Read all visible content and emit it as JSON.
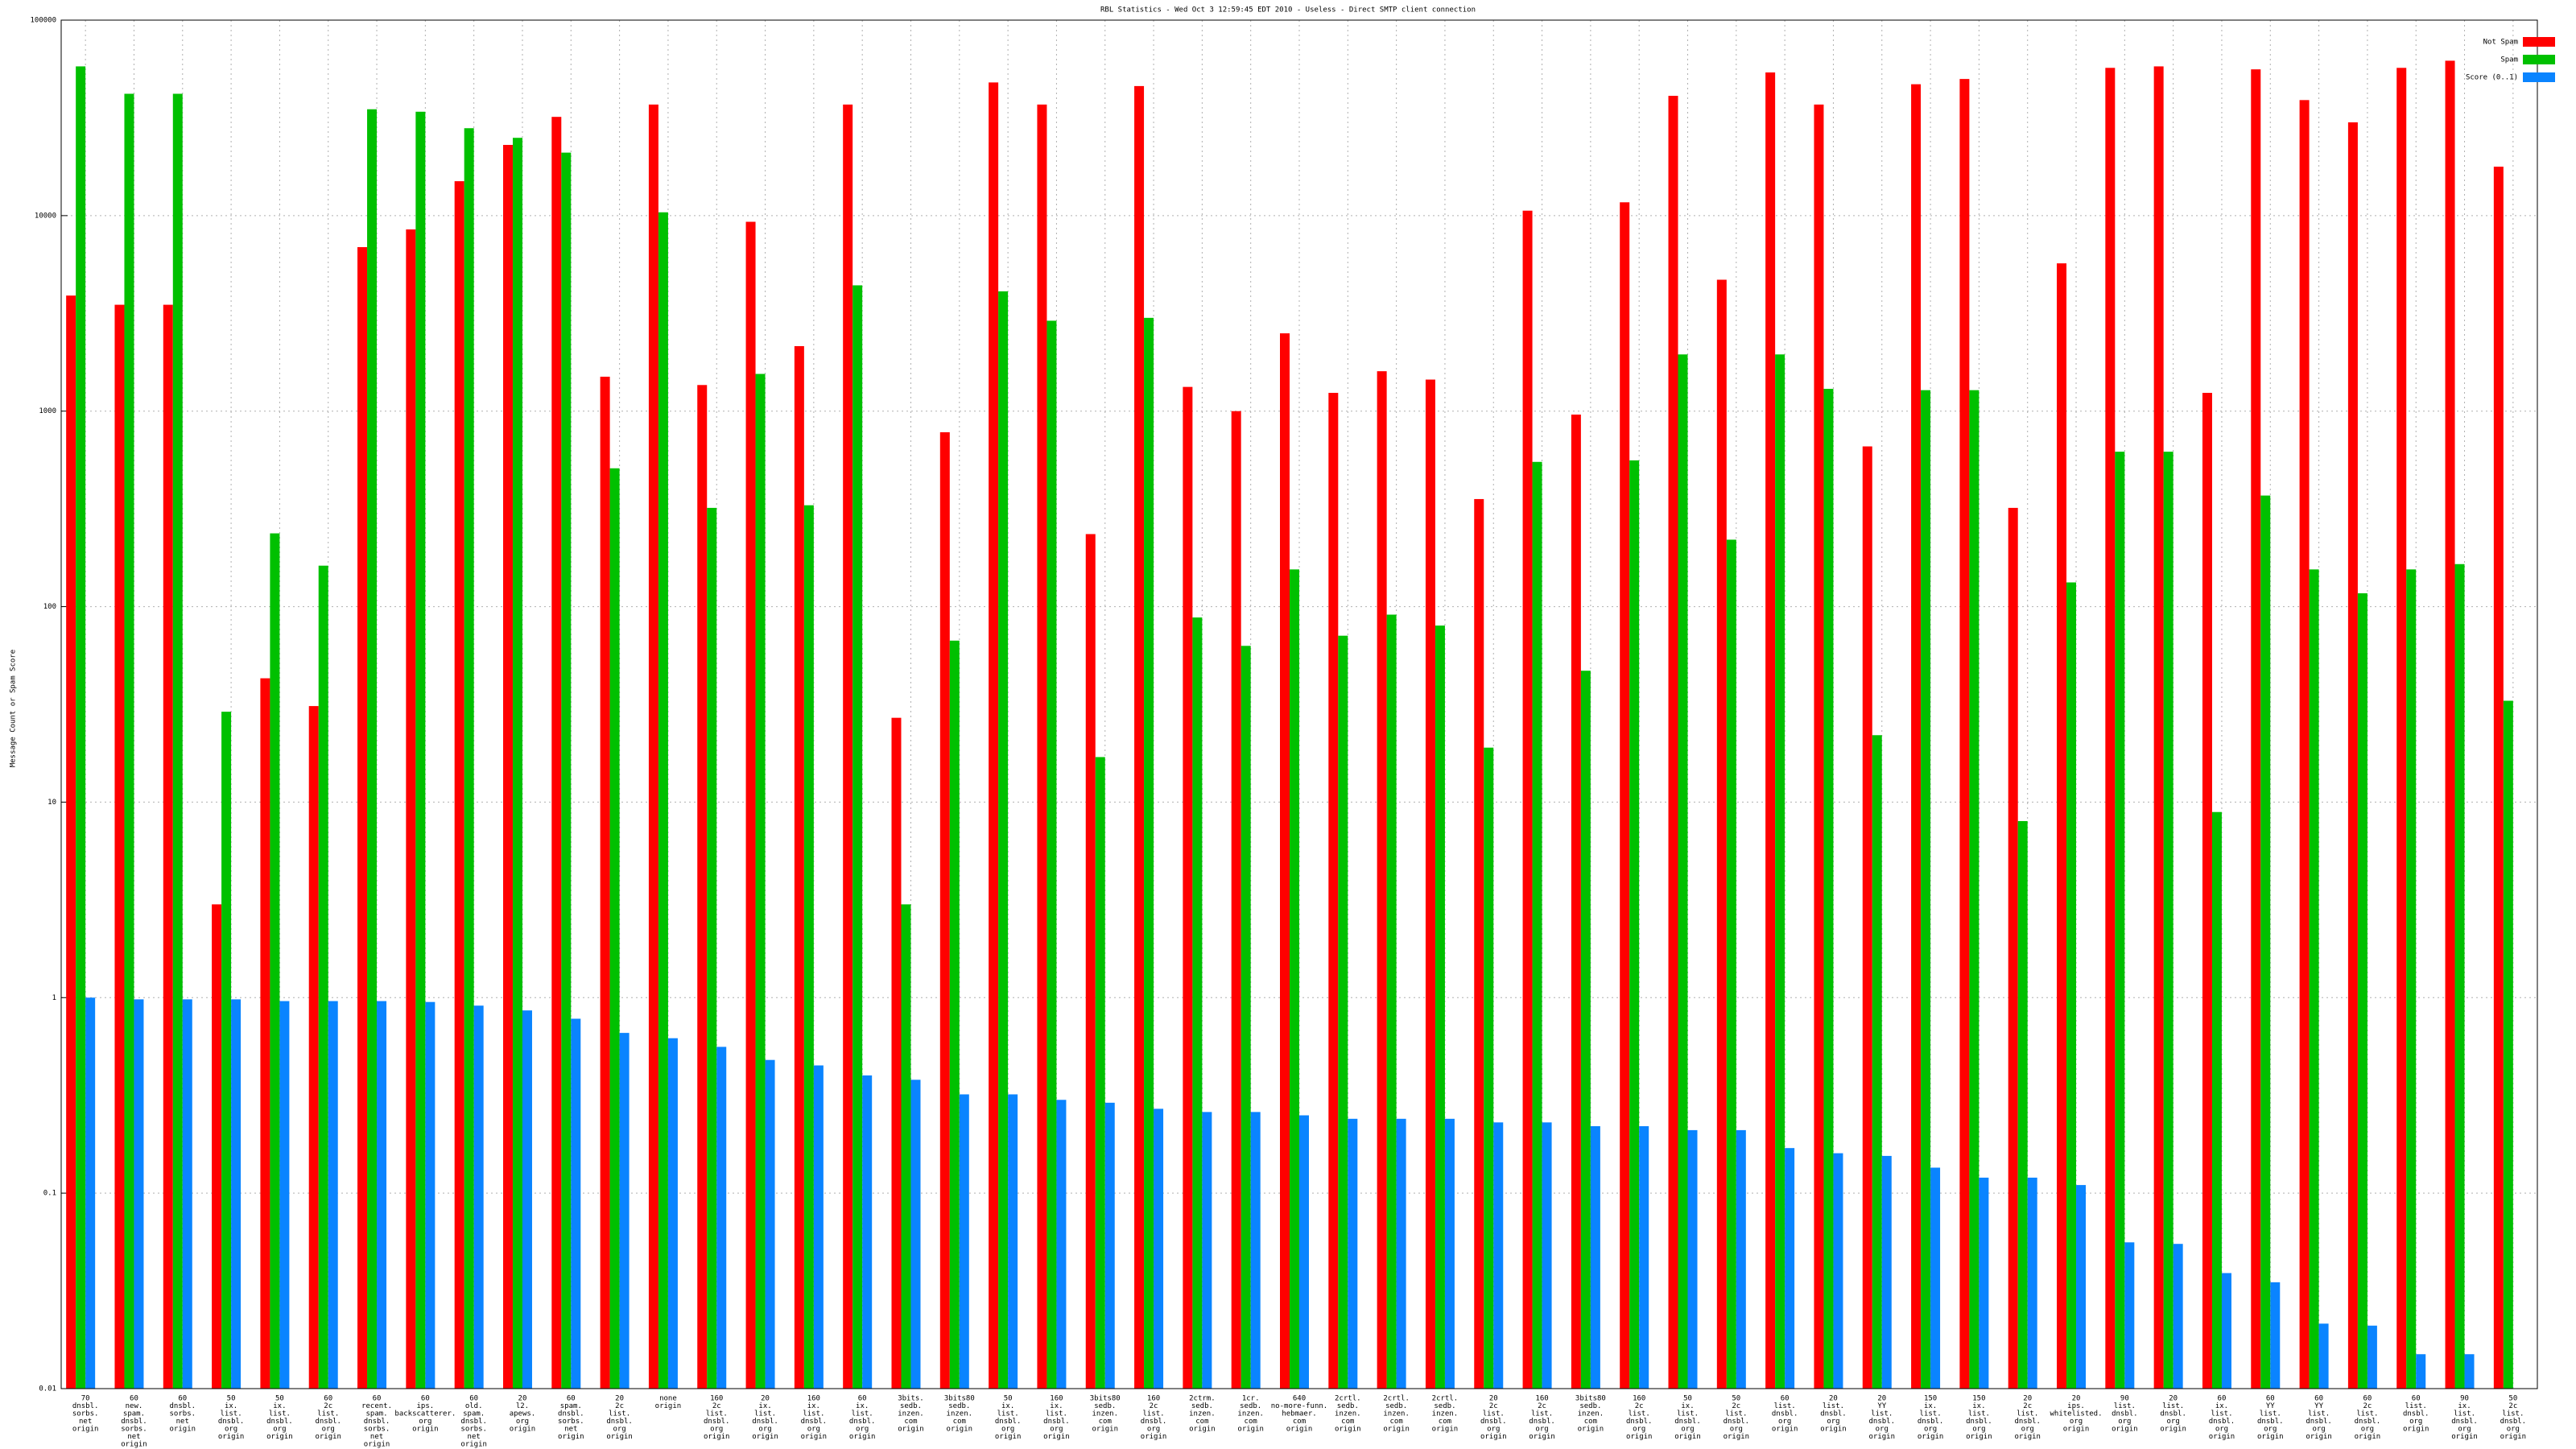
{
  "chart_data": {
    "type": "bar",
    "log_scale": true,
    "grid": true,
    "legend": "top-right",
    "title": "RBL Statistics - Wed Oct  3 12:59:45 EDT 2010 - Useless - Direct SMTP client connection",
    "y_label": "Message Count or Spam Score",
    "ylim": [
      0.01,
      100000
    ],
    "yticks": [
      0.01,
      0.1,
      1,
      10,
      100,
      1000,
      10000,
      100000
    ],
    "categories": [
      [
        "70",
        "dnsbl.",
        "sorbs.",
        "net",
        "origin"
      ],
      [
        "60",
        "new.",
        "spam.",
        "dnsbl.",
        "sorbs.",
        "net",
        "origin"
      ],
      [
        "60",
        "dnsbl.",
        "sorbs.",
        "net",
        "origin"
      ],
      [
        "50",
        "ix.",
        "list.",
        "dnsbl.",
        "org",
        "origin"
      ],
      [
        "50",
        "ix.",
        "list.",
        "dnsbl.",
        "org",
        "origin"
      ],
      [
        "60",
        "2c",
        "list.",
        "dnsbl.",
        "org",
        "origin"
      ],
      [
        "60",
        "recent.",
        "spam.",
        "dnsbl.",
        "sorbs.",
        "net",
        "origin"
      ],
      [
        "60",
        "ips.",
        "backscatterer.",
        "org",
        "origin"
      ],
      [
        "60",
        "old.",
        "spam.",
        "dnsbl.",
        "sorbs.",
        "net",
        "origin"
      ],
      [
        "20",
        "l2.",
        "apews.",
        "org",
        "origin"
      ],
      [
        "60",
        "spam.",
        "dnsbl.",
        "sorbs.",
        "net",
        "origin"
      ],
      [
        "20",
        "2c",
        "list.",
        "dnsbl.",
        "org",
        "origin"
      ],
      [
        "none",
        "origin"
      ],
      [
        "160",
        "2c",
        "list.",
        "dnsbl.",
        "org",
        "origin"
      ],
      [
        "20",
        "ix.",
        "list.",
        "dnsbl.",
        "org",
        "origin"
      ],
      [
        "160",
        "ix.",
        "list.",
        "dnsbl.",
        "org",
        "origin"
      ],
      [
        "60",
        "ix.",
        "list.",
        "dnsbl.",
        "org",
        "origin"
      ],
      [
        "3bits.",
        "sedb.",
        "inzen.",
        "com",
        "origin"
      ],
      [
        "3bits80",
        "sedb.",
        "inzen.",
        "com",
        "origin"
      ],
      [
        "50",
        "ix.",
        "list.",
        "dnsbl.",
        "org",
        "origin"
      ],
      [
        "160",
        "ix.",
        "list.",
        "dnsbl.",
        "org",
        "origin"
      ],
      [
        "3bits80",
        "sedb.",
        "inzen.",
        "com",
        "origin"
      ],
      [
        "160",
        "2c",
        "list.",
        "dnsbl.",
        "org",
        "origin"
      ],
      [
        "2ctrm.",
        "sedb.",
        "inzen.",
        "com",
        "origin"
      ],
      [
        "1cr.",
        "sedb.",
        "inzen.",
        "com",
        "origin"
      ],
      [
        "640",
        "no-more-funn.",
        "hebmaer.",
        "com",
        "origin"
      ],
      [
        "2crtl.",
        "sedb.",
        "inzen.",
        "com",
        "origin"
      ],
      [
        "2crtl.",
        "sedb.",
        "inzen.",
        "com",
        "origin"
      ],
      [
        "2crtl.",
        "sedb.",
        "inzen.",
        "com",
        "origin"
      ],
      [
        "20",
        "2c",
        "list.",
        "dnsbl.",
        "org",
        "origin"
      ],
      [
        "160",
        "2c",
        "list.",
        "dnsbl.",
        "org",
        "origin"
      ],
      [
        "3bits80",
        "sedb.",
        "inzen.",
        "com",
        "origin"
      ],
      [
        "160",
        "2c",
        "list.",
        "dnsbl.",
        "org",
        "origin"
      ],
      [
        "50",
        "ix.",
        "list.",
        "dnsbl.",
        "org",
        "origin"
      ],
      [
        "50",
        "2c",
        "list.",
        "dnsbl.",
        "org",
        "origin"
      ],
      [
        "60",
        "list.",
        "dnsbl.",
        "org",
        "origin"
      ],
      [
        "20",
        "list.",
        "dnsbl.",
        "org",
        "origin"
      ],
      [
        "20",
        "YY",
        "list.",
        "dnsbl.",
        "org",
        "origin"
      ],
      [
        "150",
        "ix.",
        "list.",
        "dnsbl.",
        "org",
        "origin"
      ],
      [
        "150",
        "ix.",
        "list.",
        "dnsbl.",
        "org",
        "origin"
      ],
      [
        "20",
        "2c",
        "list.",
        "dnsbl.",
        "org",
        "origin"
      ],
      [
        "20",
        "ips.",
        "whitelisted.",
        "org",
        "origin"
      ],
      [
        "90",
        "list.",
        "dnsbl.",
        "org",
        "origin"
      ],
      [
        "20",
        "list.",
        "dnsbl.",
        "org",
        "origin"
      ],
      [
        "60",
        "ix.",
        "list.",
        "dnsbl.",
        "org",
        "origin"
      ],
      [
        "60",
        "YY",
        "list.",
        "dnsbl.",
        "org",
        "origin"
      ],
      [
        "60",
        "YY",
        "list.",
        "dnsbl.",
        "org",
        "origin"
      ],
      [
        "60",
        "2c",
        "list.",
        "dnsbl.",
        "org",
        "origin"
      ],
      [
        "60",
        "list.",
        "dnsbl.",
        "org",
        "origin"
      ],
      [
        "90",
        "ix.",
        "list.",
        "dnsbl.",
        "org",
        "origin"
      ],
      [
        "50",
        "2c",
        "list.",
        "dnsbl.",
        "org",
        "origin"
      ]
    ],
    "series": [
      {
        "name": "Not Spam",
        "color": "#ff0000",
        "values": [
          3900,
          3500,
          3500,
          3.0,
          43,
          31,
          6900,
          8500,
          15000,
          23000,
          32000,
          1500,
          37000,
          1360,
          9300,
          2150,
          37000,
          27,
          780,
          48000,
          37000,
          235,
          46000,
          1330,
          1000,
          2500,
          1240,
          1600,
          1450,
          355,
          10600,
          960,
          11700,
          41000,
          4700,
          54000,
          37000,
          660,
          47000,
          50000,
          320,
          5700,
          57000,
          58000,
          1240,
          56000,
          39000,
          30000,
          57000,
          62000,
          17800
        ]
      },
      {
        "name": "Spam",
        "color": "#00c000",
        "values": [
          58000,
          42000,
          42000,
          29,
          237,
          162,
          35000,
          34000,
          28000,
          25000,
          21000,
          510,
          10400,
          320,
          1550,
          330,
          4400,
          3.0,
          67,
          4100,
          2900,
          17,
          3000,
          88,
          63,
          155,
          71,
          91,
          80,
          19,
          550,
          47,
          560,
          1950,
          220,
          1950,
          1300,
          22,
          1280,
          1280,
          8.0,
          133,
          620,
          620,
          8.9,
          370,
          155,
          117,
          155,
          165,
          33
        ]
      },
      {
        "name": "Score (0..1)",
        "color": "#0a84ff",
        "values": [
          1.0,
          0.98,
          0.98,
          0.98,
          0.96,
          0.96,
          0.96,
          0.95,
          0.91,
          0.86,
          0.78,
          0.66,
          0.62,
          0.56,
          0.48,
          0.45,
          0.4,
          0.38,
          0.32,
          0.32,
          0.3,
          0.29,
          0.27,
          0.26,
          0.26,
          0.25,
          0.24,
          0.24,
          0.24,
          0.23,
          0.23,
          0.22,
          0.22,
          0.21,
          0.21,
          0.17,
          0.16,
          0.155,
          0.135,
          0.12,
          0.12,
          0.11,
          0.056,
          0.055,
          0.039,
          0.035,
          0.0215,
          0.021,
          0.015,
          0.015,
          null
        ]
      }
    ]
  }
}
